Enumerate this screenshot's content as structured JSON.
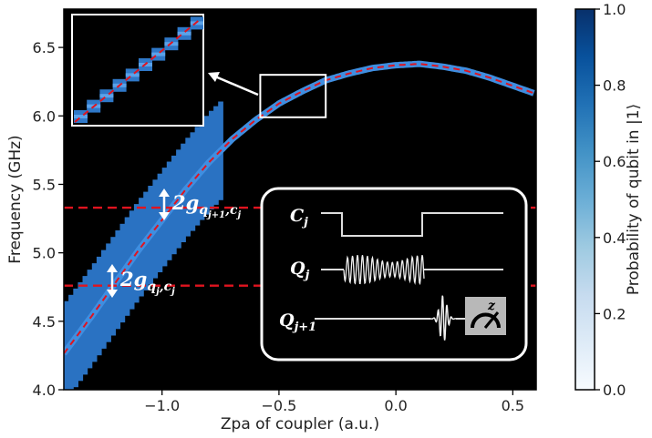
{
  "chart_data": {
    "type": "heatmap",
    "xlabel": "Zpa of coupler (a.u.)",
    "ylabel": "Frequency (GHz)",
    "xlim": [
      -1.42,
      0.6
    ],
    "ylim": [
      4.0,
      6.78
    ],
    "x_ticks": [
      -1.0,
      -0.5,
      0.0,
      0.5
    ],
    "x_tick_labels": [
      "−1.0",
      "−0.5",
      "0.0",
      "0.5"
    ],
    "y_ticks": [
      4.0,
      4.5,
      5.0,
      5.5,
      6.0,
      6.5
    ],
    "y_tick_labels": [
      "4.0",
      "4.5",
      "5.0",
      "5.5",
      "6.0",
      "6.5"
    ],
    "colorbar": {
      "label": "Probability of qubit in |1⟩",
      "range": [
        0.0,
        1.0
      ],
      "ticks": [
        0.0,
        0.2,
        0.4,
        0.6,
        0.8,
        1.0
      ],
      "tick_labels": [
        "0.0",
        "0.2",
        "0.4",
        "0.6",
        "0.8",
        "1.0"
      ],
      "colormap": "Blues"
    },
    "levels": {
      "qubit_j_GHz": 4.76,
      "qubit_j1_GHz": 5.33
    },
    "coupler_curve": {
      "x": [
        -1.4,
        -1.3,
        -1.2,
        -1.1,
        -1.0,
        -0.9,
        -0.8,
        -0.7,
        -0.6,
        -0.5,
        -0.4,
        -0.3,
        -0.2,
        -0.1,
        0.0,
        0.1,
        0.2,
        0.3,
        0.4,
        0.5,
        0.6
      ],
      "y": [
        4.31,
        4.54,
        4.78,
        5.02,
        5.24,
        5.46,
        5.66,
        5.83,
        5.97,
        6.09,
        6.18,
        6.26,
        6.31,
        6.35,
        6.37,
        6.38,
        6.36,
        6.33,
        6.28,
        6.22,
        6.16
      ]
    },
    "measured_band": {
      "x_range": [
        -1.42,
        -0.75
      ],
      "half_width_GHz": 0.36
    },
    "zoom_box": {
      "x": [
        -0.58,
        -0.3
      ],
      "y": [
        5.99,
        6.3
      ]
    },
    "annotations": {
      "coupling_lower": {
        "base": "2g",
        "subscript": "q",
        "sub_sub": "j",
        "sep": ",",
        "sub2": "c",
        "sub2_sub": "j"
      },
      "coupling_upper": {
        "base": "2g",
        "subscript": "q",
        "sub_sub": "j+1",
        "sep": ",",
        "sub2": "c",
        "sub2_sub": "j"
      }
    },
    "pulse_inset": {
      "rows": [
        {
          "label": "C",
          "sub": "j"
        },
        {
          "label": "Q",
          "sub": "j"
        },
        {
          "label": "Q",
          "sub": "j+1"
        }
      ],
      "meter_label": "z"
    }
  },
  "colors": {
    "background": "#000000",
    "data_blue": "#2a72c2",
    "fit_red": "#e0141f",
    "annotation": "#ffffff"
  }
}
